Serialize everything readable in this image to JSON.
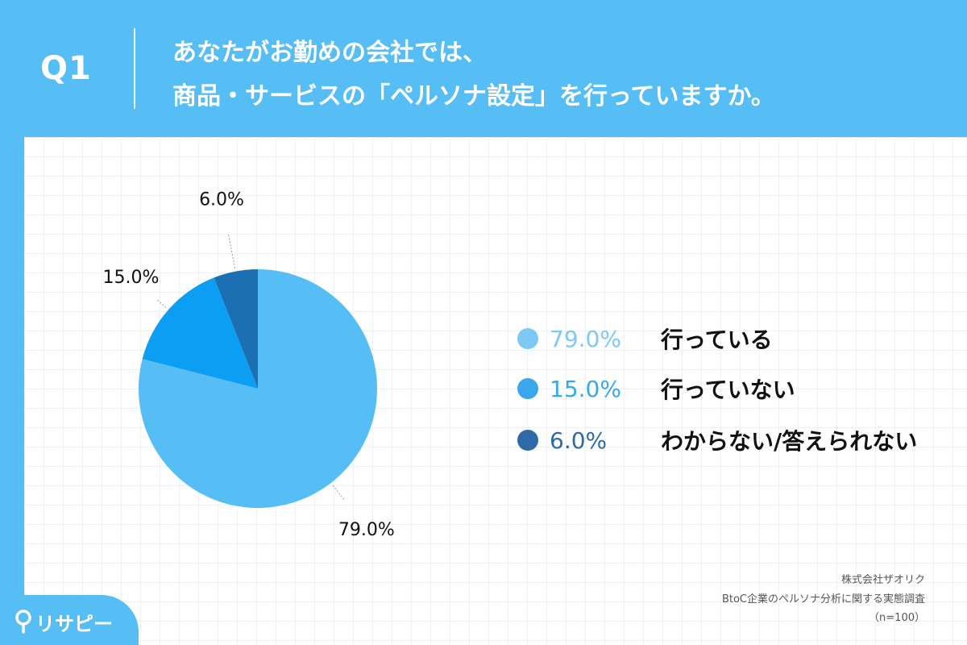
{
  "header": {
    "question_number": "Q1",
    "title_line1": "あなたがお勤めの会社では、",
    "title_line2": "商品・サービスの「ペルソナ設定」を行っていますか。",
    "background_color": "#56bdf5"
  },
  "chart_data": {
    "type": "pie",
    "categories": [
      "行っている",
      "行っていない",
      "わからない/答えられない"
    ],
    "values": [
      79.0,
      15.0,
      6.0
    ],
    "value_labels": [
      "79.0%",
      "15.0%",
      "6.0%"
    ],
    "colors": [
      "#56bdf5",
      "#0b9ef2",
      "#1d6fb3"
    ],
    "legend_value_colors": [
      "#7ec8f6",
      "#3aa7ec",
      "#2f6aa8"
    ],
    "start": "12 o'clock",
    "direction": "clockwise",
    "legend_position": "right"
  },
  "credit": {
    "company": "株式会社ザオリク",
    "survey": "BtoC企業のペルソナ分析に関する実態調査",
    "sample": "（n=100）"
  },
  "logo": {
    "text": "リサピー",
    "icon": "location-pin-icon"
  }
}
